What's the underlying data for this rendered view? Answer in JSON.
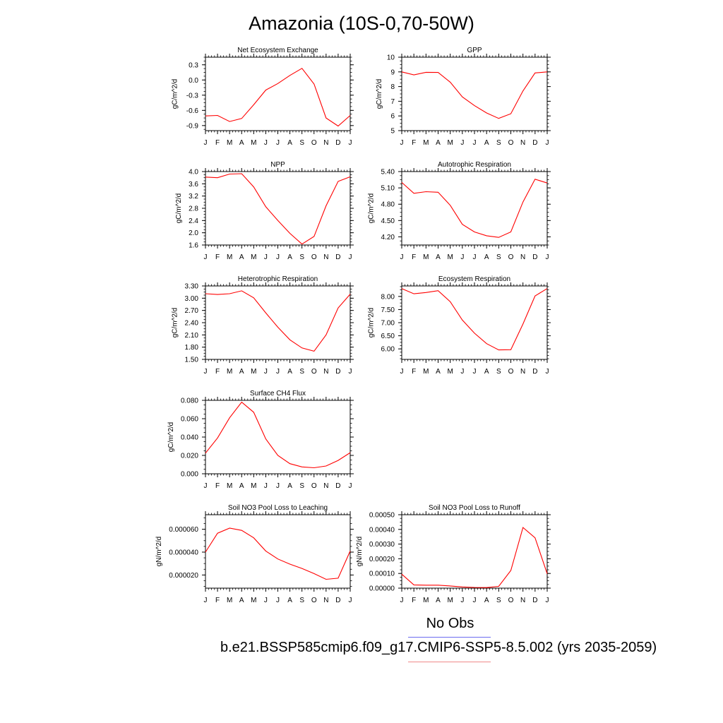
{
  "title": "Amazonia (10S-0,70-50W)",
  "legend": {
    "obs_label": "No Obs",
    "case_label": "b.e21.BSSP585cmip6.f09_g17.CMIP6-SSP5-8.5.002 (yrs 2035-2059)",
    "colors": {
      "obs": "#6b6bf0",
      "case": "#f08a8a"
    }
  },
  "line_color": "#ff0000",
  "chart_data": [
    {
      "type": "line",
      "title": "Net Ecosystem Exchange",
      "ylabel": "gC/m^2/d",
      "categories": [
        "J",
        "F",
        "M",
        "A",
        "M",
        "J",
        "J",
        "A",
        "S",
        "O",
        "N",
        "D",
        "J"
      ],
      "yticks": [
        "0.3",
        "0.0",
        "-0.3",
        "-0.6",
        "-0.9"
      ],
      "ylim": [
        -1.0,
        0.45
      ],
      "ytick_values": [
        0.3,
        0.0,
        -0.3,
        -0.6,
        -0.9
      ],
      "values": [
        -0.71,
        -0.7,
        -0.82,
        -0.76,
        -0.49,
        -0.2,
        -0.07,
        0.09,
        0.23,
        -0.08,
        -0.75,
        -0.91,
        -0.7
      ]
    },
    {
      "type": "line",
      "title": "GPP",
      "ylabel": "gC/m^2/d",
      "categories": [
        "J",
        "F",
        "M",
        "A",
        "M",
        "J",
        "J",
        "A",
        "S",
        "O",
        "N",
        "D",
        "J"
      ],
      "yticks": [
        "10",
        "9",
        "8",
        "7",
        "6",
        "5"
      ],
      "ylim": [
        5,
        10
      ],
      "ytick_values": [
        10,
        9,
        8,
        7,
        6,
        5
      ],
      "values": [
        9.0,
        8.8,
        8.97,
        8.96,
        8.3,
        7.3,
        6.7,
        6.2,
        5.83,
        6.15,
        7.7,
        8.93,
        9.0
      ]
    },
    {
      "type": "line",
      "title": "NPP",
      "ylabel": "gC/m^2/d",
      "categories": [
        "J",
        "F",
        "M",
        "A",
        "M",
        "J",
        "J",
        "A",
        "S",
        "O",
        "N",
        "D",
        "J"
      ],
      "yticks": [
        "4.0",
        "3.6",
        "3.2",
        "2.8",
        "2.4",
        "2.0",
        "1.6"
      ],
      "ylim": [
        1.6,
        4.0
      ],
      "ytick_values": [
        4.0,
        3.6,
        3.2,
        2.8,
        2.4,
        2.0,
        1.6
      ],
      "values": [
        3.82,
        3.8,
        3.92,
        3.93,
        3.5,
        2.85,
        2.4,
        1.98,
        1.63,
        1.88,
        2.88,
        3.68,
        3.83
      ]
    },
    {
      "type": "line",
      "title": "Autotrophic Respiration",
      "ylabel": "gC/m^2/d",
      "categories": [
        "J",
        "F",
        "M",
        "A",
        "M",
        "J",
        "J",
        "A",
        "S",
        "O",
        "N",
        "D",
        "J"
      ],
      "yticks": [
        "5.40",
        "5.10",
        "4.80",
        "4.50",
        "4.20"
      ],
      "ylim": [
        4.05,
        5.4
      ],
      "ytick_values": [
        5.4,
        5.1,
        4.8,
        4.5,
        4.2
      ],
      "values": [
        5.2,
        5.0,
        5.03,
        5.02,
        4.78,
        4.43,
        4.29,
        4.22,
        4.19,
        4.29,
        4.84,
        5.26,
        5.19
      ]
    },
    {
      "type": "line",
      "title": "Heterotrophic Respiration",
      "ylabel": "gC/m^2/d",
      "categories": [
        "J",
        "F",
        "M",
        "A",
        "M",
        "J",
        "J",
        "A",
        "S",
        "O",
        "N",
        "D",
        "J"
      ],
      "yticks": [
        "3.30",
        "3.00",
        "2.70",
        "2.40",
        "2.10",
        "1.80",
        "1.50"
      ],
      "ylim": [
        1.5,
        3.3
      ],
      "ytick_values": [
        3.3,
        3.0,
        2.7,
        2.4,
        2.1,
        1.8,
        1.5
      ],
      "values": [
        3.11,
        3.09,
        3.11,
        3.18,
        3.01,
        2.64,
        2.29,
        1.98,
        1.78,
        1.7,
        2.1,
        2.76,
        3.1
      ]
    },
    {
      "type": "line",
      "title": "Ecosystem Respiration",
      "ylabel": "gC/m^2/d",
      "categories": [
        "J",
        "F",
        "M",
        "A",
        "M",
        "J",
        "J",
        "A",
        "S",
        "O",
        "N",
        "D",
        "J"
      ],
      "yticks": [
        "8.00",
        "7.50",
        "7.00",
        "6.50",
        "6.00"
      ],
      "ylim": [
        5.6,
        8.4
      ],
      "ytick_values": [
        8.0,
        7.5,
        7.0,
        6.5,
        6.0
      ],
      "values": [
        8.3,
        8.1,
        8.15,
        8.22,
        7.8,
        7.1,
        6.6,
        6.2,
        5.96,
        5.97,
        6.95,
        8.02,
        8.3
      ]
    },
    {
      "type": "line",
      "title": "Surface CH4 Flux",
      "ylabel": "gC/m^2/d",
      "categories": [
        "J",
        "F",
        "M",
        "A",
        "M",
        "J",
        "J",
        "A",
        "S",
        "O",
        "N",
        "D",
        "J"
      ],
      "yticks": [
        "0.080",
        "0.060",
        "0.040",
        "0.020",
        "0.000"
      ],
      "ylim": [
        0.0,
        0.08
      ],
      "ytick_values": [
        0.08,
        0.06,
        0.04,
        0.02,
        0.0
      ],
      "values": [
        0.0225,
        0.039,
        0.061,
        0.078,
        0.067,
        0.038,
        0.02,
        0.011,
        0.0075,
        0.0065,
        0.0085,
        0.0145,
        0.023
      ]
    },
    {
      "type": "line",
      "title": "Soil NO3 Pool Loss to Leaching",
      "ylabel": "gN/m^2/d",
      "categories": [
        "J",
        "F",
        "M",
        "A",
        "M",
        "J",
        "J",
        "A",
        "S",
        "O",
        "N",
        "D",
        "J"
      ],
      "yticks": [
        "0.000060",
        "0.000040",
        "0.000020"
      ],
      "ylim": [
        8.5e-06,
        7.27e-05
      ],
      "ytick_values": [
        6e-05,
        4e-05,
        2e-05
      ],
      "values": [
        4e-05,
        5.65e-05,
        6.1e-05,
        5.9e-05,
        5.25e-05,
        4.1e-05,
        3.4e-05,
        2.95e-05,
        2.57e-05,
        2.12e-05,
        1.62e-05,
        1.72e-05,
        4.1e-05
      ]
    },
    {
      "type": "line",
      "title": "Soil NO3 Pool Loss to Runoff",
      "ylabel": "gN/m^2/d",
      "categories": [
        "J",
        "F",
        "M",
        "A",
        "M",
        "J",
        "J",
        "A",
        "S",
        "O",
        "N",
        "D",
        "J"
      ],
      "yticks": [
        "0.00050",
        "0.00040",
        "0.00030",
        "0.00020",
        "0.00010",
        "0.00000"
      ],
      "ylim": [
        0.0,
        0.0005
      ],
      "ytick_values": [
        0.0005,
        0.0004,
        0.0003,
        0.0002,
        0.0001,
        0.0
      ],
      "values": [
        9.5e-05,
        2.2e-05,
        2e-05,
        2e-05,
        1.5e-05,
        8e-06,
        5e-06,
        4e-06,
        1.2e-05,
        0.00012,
        0.000413,
        0.000343,
        9.8e-05
      ]
    }
  ]
}
